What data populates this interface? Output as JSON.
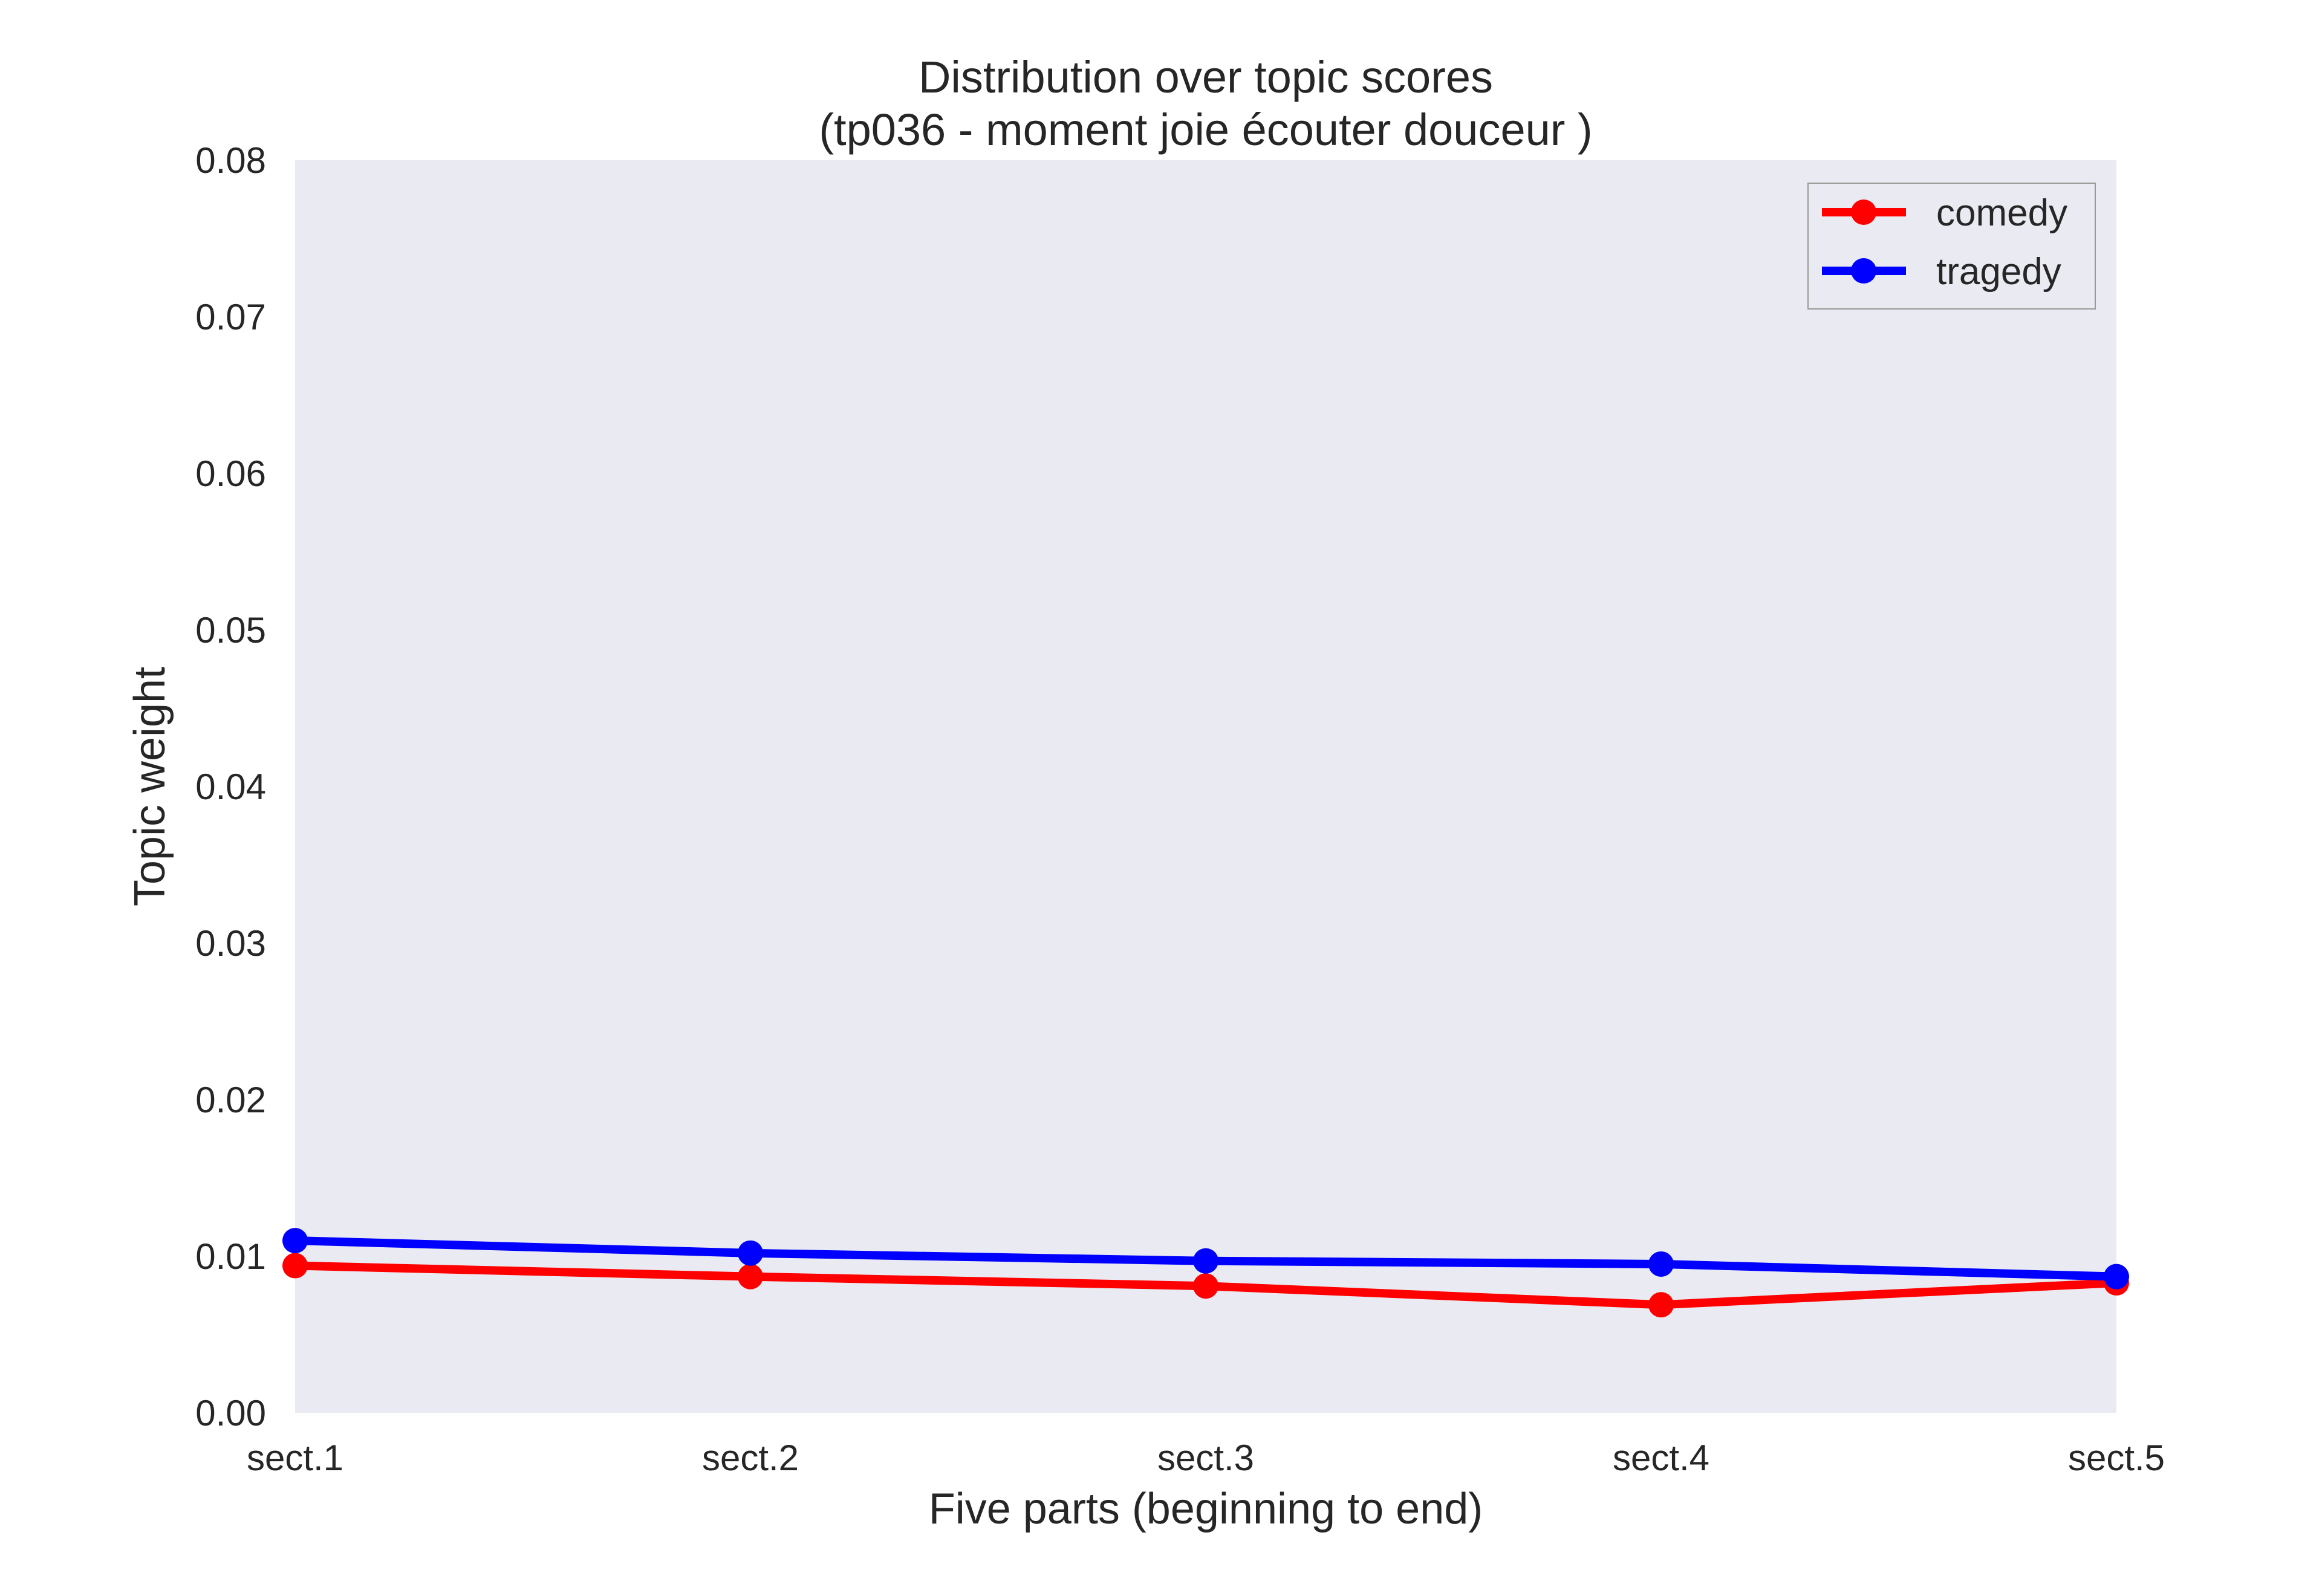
{
  "chart_data": {
    "type": "line",
    "title": "Distribution over topic scores",
    "subtitle": "(tp036 - moment joie écouter douceur )",
    "xlabel": "Five parts (beginning to end)",
    "ylabel": "Topic weight",
    "categories": [
      "sect.1",
      "sect.2",
      "sect.3",
      "sect.4",
      "sect.5"
    ],
    "ylim": [
      0,
      0.08
    ],
    "yticks": [
      "0.00",
      "0.01",
      "0.02",
      "0.03",
      "0.04",
      "0.05",
      "0.06",
      "0.07",
      "0.08"
    ],
    "grid": false,
    "legend_position": "top-right",
    "series": [
      {
        "name": "comedy",
        "color": "#ff0000",
        "values": [
          0.0094,
          0.0087,
          0.0081,
          0.0069,
          0.0083
        ]
      },
      {
        "name": "tragedy",
        "color": "#0000ff",
        "values": [
          0.011,
          0.0102,
          0.0097,
          0.0095,
          0.0087
        ]
      }
    ],
    "plot_background": "#eaeaf2"
  }
}
